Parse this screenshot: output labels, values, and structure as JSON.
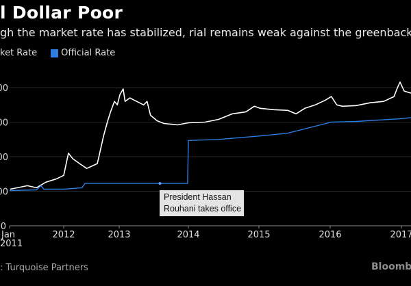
{
  "header": {
    "title": "l Dollar Poor",
    "subtitle": "gh the market rate has stabilized, rial remains weak against the greenback"
  },
  "legend": [
    {
      "label": "ket Rate",
      "color": "#ffffff"
    },
    {
      "label": "Official Rate",
      "color": "#2e7de0"
    }
  ],
  "footer": {
    "source": ": Turquoise Partners",
    "brand": "Bloombe"
  },
  "chart_data": {
    "type": "line",
    "title": "l Dollar Poor",
    "subtitle": "gh the market rate has stabilized, rial remains weak against the greenback",
    "ylim": [
      0,
      40000
    ],
    "yticks": [
      0,
      10000,
      20000,
      30000,
      40000
    ],
    "ytick_labels": [
      "0",
      "00",
      "00",
      "00",
      "00"
    ],
    "xticks": [
      {
        "date": "2011-01-01",
        "label": "Jan",
        "label2": "2011"
      },
      {
        "date": "2012-01-01",
        "label": "2012"
      },
      {
        "date": "2013-01-01",
        "label": "2013"
      },
      {
        "date": "2014-01-01",
        "label": "2014"
      },
      {
        "date": "2015-01-01",
        "label": "2015"
      },
      {
        "date": "2016-01-01",
        "label": "2016"
      },
      {
        "date": "2017-01-01",
        "label": "2017"
      }
    ],
    "grid": true,
    "legend_position": "top-left",
    "series": [
      {
        "name": "ket Rate",
        "color": "#ffffff",
        "points": [
          [
            "2011-01-05",
            10600
          ],
          [
            "2011-05-01",
            11600
          ],
          [
            "2011-07-01",
            11000
          ],
          [
            "2011-09-01",
            12600
          ],
          [
            "2011-11-15",
            13600
          ],
          [
            "2012-01-01",
            14600
          ],
          [
            "2012-02-01",
            21000
          ],
          [
            "2012-03-01",
            19400
          ],
          [
            "2012-04-15",
            18000
          ],
          [
            "2012-06-01",
            16600
          ],
          [
            "2012-08-10",
            18000
          ],
          [
            "2012-09-20",
            26000
          ],
          [
            "2012-10-15",
            30000
          ],
          [
            "2012-11-05",
            33000
          ],
          [
            "2012-12-01",
            36000
          ],
          [
            "2012-12-20",
            35000
          ],
          [
            "2013-01-05",
            38000
          ],
          [
            "2013-01-22",
            39600
          ],
          [
            "2013-02-01",
            36000
          ],
          [
            "2013-02-26",
            37000
          ],
          [
            "2013-04-03",
            36000
          ],
          [
            "2013-05-10",
            35000
          ],
          [
            "2013-05-28",
            36000
          ],
          [
            "2013-06-15",
            32000
          ],
          [
            "2013-07-20",
            30400
          ],
          [
            "2013-08-25",
            29600
          ],
          [
            "2013-11-05",
            29200
          ],
          [
            "2014-01-01",
            29800
          ],
          [
            "2014-03-28",
            30000
          ],
          [
            "2014-06-06",
            30800
          ],
          [
            "2014-08-16",
            32400
          ],
          [
            "2014-10-26",
            33000
          ],
          [
            "2014-12-08",
            34600
          ],
          [
            "2015-01-07",
            34000
          ],
          [
            "2015-03-18",
            33600
          ],
          [
            "2015-05-28",
            33400
          ],
          [
            "2015-07-10",
            32400
          ],
          [
            "2015-08-24",
            34000
          ],
          [
            "2015-10-17",
            35000
          ],
          [
            "2015-12-09",
            36400
          ],
          [
            "2016-01-07",
            37400
          ],
          [
            "2016-02-04",
            35000
          ],
          [
            "2016-03-04",
            34600
          ],
          [
            "2016-05-14",
            34800
          ],
          [
            "2016-07-24",
            35600
          ],
          [
            "2016-10-02",
            36000
          ],
          [
            "2016-11-24",
            37400
          ],
          [
            "2016-12-12",
            40000
          ],
          [
            "2016-12-25",
            41600
          ],
          [
            "2017-01-15",
            39000
          ],
          [
            "2017-02-19",
            38400
          ]
        ]
      },
      {
        "name": "Official Rate",
        "color": "#2e7de0",
        "points": [
          [
            "2011-01-01",
            10200
          ],
          [
            "2011-07-01",
            10400
          ],
          [
            "2011-08-01",
            11600
          ],
          [
            "2011-08-20",
            10600
          ],
          [
            "2012-01-01",
            10600
          ],
          [
            "2012-05-01",
            11000
          ],
          [
            "2012-05-20",
            12260
          ],
          [
            "2013-08-04",
            12260
          ],
          [
            "2013-12-28",
            12260
          ],
          [
            "2014-01-01",
            24700
          ],
          [
            "2014-06-06",
            25000
          ],
          [
            "2015-01-07",
            26000
          ],
          [
            "2015-05-28",
            26800
          ],
          [
            "2016-01-07",
            30000
          ],
          [
            "2016-05-14",
            30200
          ],
          [
            "2017-01-01",
            31000
          ],
          [
            "2017-02-19",
            31300
          ]
        ]
      }
    ],
    "annotations": [
      {
        "date": "2013-08-04",
        "value": 12260,
        "text_line1": "President Hassan",
        "text_line2": "Rouhani takes office"
      }
    ]
  }
}
